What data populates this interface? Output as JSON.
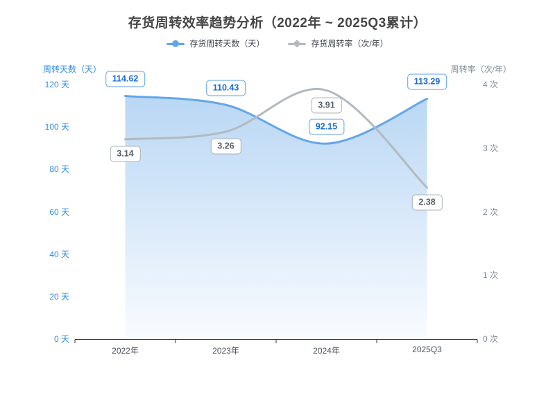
{
  "header": {
    "title": "存货周转效率趋势分析（2022年 ~ 2025Q3累计）"
  },
  "legend": {
    "items": [
      {
        "label": "存货周转天数（天）",
        "marker": "circle",
        "color": "#64a6e8"
      },
      {
        "label": "存货周转率（次/年）",
        "marker": "diamond",
        "color": "#b2bac0"
      }
    ]
  },
  "chart_data": {
    "type": "line",
    "categories": [
      "2022年",
      "2023年",
      "2024年",
      "2025Q3"
    ],
    "series": [
      {
        "name": "存货周转天数（天）",
        "axis": "left",
        "values": [
          114.62,
          110.43,
          92.15,
          113.29
        ],
        "labels": [
          "114.62",
          "110.43",
          "92.15",
          "113.29"
        ],
        "color": "#64a6e8",
        "area": true,
        "smooth": true,
        "label_position": "above",
        "label_text_color": "#1a6cd8",
        "label_border_color": "#5b9fe6"
      },
      {
        "name": "存货周转率（次/年）",
        "axis": "right",
        "values": [
          3.14,
          3.26,
          3.91,
          2.38
        ],
        "labels": [
          "3.14",
          "3.26",
          "3.91",
          "2.38"
        ],
        "color": "#b2bac0",
        "area": false,
        "smooth": true,
        "label_position": "below",
        "label_text_color": "#555e66",
        "label_border_color": "#a9b3ba"
      }
    ],
    "left_axis": {
      "name": "周转天数（天）",
      "min": 0,
      "max": 120,
      "step": 20,
      "suffix": " 天",
      "color": "#2e8ae6"
    },
    "right_axis": {
      "name": "周转率（次/年）",
      "min": 0,
      "max": 4,
      "step": 1,
      "suffix": " 次",
      "color": "#7c8b96"
    },
    "x_axis_color": "#333333",
    "area_gradient_top": "rgba(100,166,232,0.45)",
    "area_gradient_bottom": "rgba(100,166,232,0.04)",
    "grid": false,
    "legend_position": "top"
  }
}
